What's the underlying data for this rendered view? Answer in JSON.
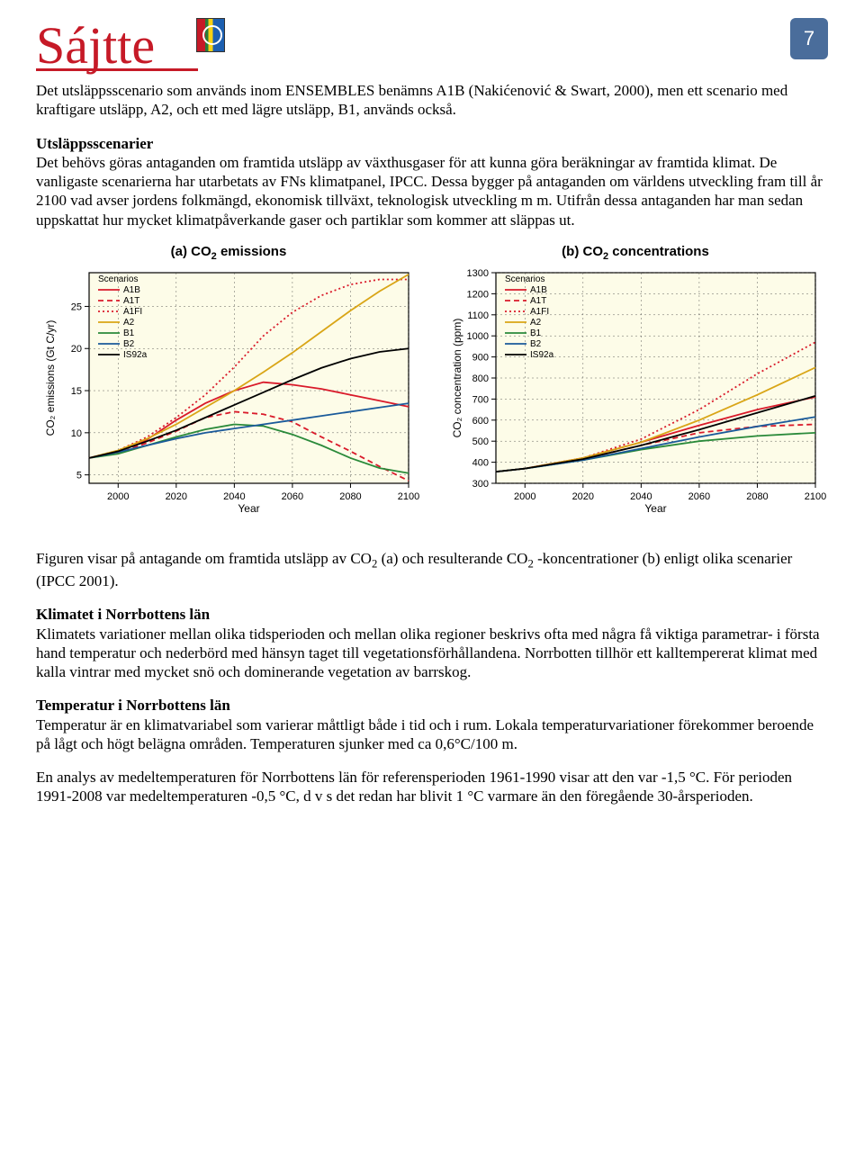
{
  "page_number": "7",
  "logo_text": "Sájtte",
  "para1": "Det utsläppsscenario som används inom ENSEMBLES benämns A1B (Nakićenović & Swart, 2000), men ett scenario med kraftigare utsläpp, A2, och ett med lägre utsläpp, B1, används också.",
  "sec1_title": "Utsläppsscenarier",
  "para2": "Det behövs göras antaganden om framtida utsläpp av växthusgaser för att kunna göra beräkningar av framtida klimat. De vanligaste scenarierna har utarbetats av FNs klimatpanel, IPCC. Dessa bygger på antaganden om världens utveckling fram till år 2100 vad avser jordens folkmängd, ekonomisk tillväxt, teknologisk utveckling m m. Utifrån dessa antaganden har man sedan uppskattat hur mycket klimatpåverkande gaser och partiklar som kommer att släppas ut.",
  "caption_a": "(a) CO",
  "caption_a2": " emissions",
  "caption_b": "(b) CO",
  "caption_b2": " concentrations",
  "chart_a": {
    "type": "line",
    "ylabel": "CO₂ emissions (Gt C/yr)",
    "xlabel": "Year",
    "xlim": [
      1990,
      2100
    ],
    "ylim": [
      4,
      29
    ],
    "yticks": [
      5,
      10,
      15,
      20,
      25
    ],
    "xticks": [
      2000,
      2020,
      2040,
      2060,
      2080,
      2100
    ],
    "legend_title": "Scenarios",
    "background": "#fdfce8",
    "grid_color": "#3a3a3a",
    "series": [
      {
        "name": "A1B",
        "color": "#d91a2a",
        "dash": "",
        "pts": [
          [
            1990,
            7.0
          ],
          [
            2000,
            7.8
          ],
          [
            2010,
            9.2
          ],
          [
            2020,
            11.5
          ],
          [
            2030,
            13.5
          ],
          [
            2040,
            15.0
          ],
          [
            2050,
            16.0
          ],
          [
            2060,
            15.7
          ],
          [
            2070,
            15.2
          ],
          [
            2080,
            14.5
          ],
          [
            2090,
            13.8
          ],
          [
            2100,
            13.1
          ]
        ]
      },
      {
        "name": "A1T",
        "color": "#d91a2a",
        "dash": "6,4",
        "pts": [
          [
            1990,
            7.0
          ],
          [
            2000,
            7.6
          ],
          [
            2010,
            8.8
          ],
          [
            2020,
            10.2
          ],
          [
            2030,
            11.8
          ],
          [
            2040,
            12.5
          ],
          [
            2050,
            12.2
          ],
          [
            2060,
            11.3
          ],
          [
            2070,
            9.5
          ],
          [
            2080,
            7.8
          ],
          [
            2090,
            6.0
          ],
          [
            2100,
            4.3
          ]
        ]
      },
      {
        "name": "A1FI",
        "color": "#d91a2a",
        "dash": "2,3",
        "pts": [
          [
            1990,
            7.0
          ],
          [
            2000,
            7.9
          ],
          [
            2010,
            9.5
          ],
          [
            2020,
            11.8
          ],
          [
            2030,
            14.5
          ],
          [
            2040,
            17.8
          ],
          [
            2050,
            21.5
          ],
          [
            2060,
            24.3
          ],
          [
            2070,
            26.3
          ],
          [
            2080,
            27.6
          ],
          [
            2090,
            28.2
          ],
          [
            2100,
            28.2
          ]
        ]
      },
      {
        "name": "A2",
        "color": "#d9a516",
        "dash": "",
        "pts": [
          [
            1990,
            7.0
          ],
          [
            2000,
            7.9
          ],
          [
            2010,
            9.3
          ],
          [
            2020,
            11.0
          ],
          [
            2030,
            13.0
          ],
          [
            2040,
            15.0
          ],
          [
            2050,
            17.2
          ],
          [
            2060,
            19.5
          ],
          [
            2070,
            22.0
          ],
          [
            2080,
            24.5
          ],
          [
            2090,
            26.8
          ],
          [
            2100,
            28.8
          ]
        ]
      },
      {
        "name": "B1",
        "color": "#2a8a3a",
        "dash": "",
        "pts": [
          [
            1990,
            7.0
          ],
          [
            2000,
            7.5
          ],
          [
            2010,
            8.5
          ],
          [
            2020,
            9.5
          ],
          [
            2030,
            10.4
          ],
          [
            2040,
            11.0
          ],
          [
            2050,
            10.8
          ],
          [
            2060,
            9.8
          ],
          [
            2070,
            8.5
          ],
          [
            2080,
            7.0
          ],
          [
            2090,
            5.8
          ],
          [
            2100,
            5.2
          ]
        ]
      },
      {
        "name": "B2",
        "color": "#1a5a9a",
        "dash": "",
        "pts": [
          [
            1990,
            7.0
          ],
          [
            2000,
            7.7
          ],
          [
            2010,
            8.5
          ],
          [
            2020,
            9.3
          ],
          [
            2030,
            10.0
          ],
          [
            2040,
            10.5
          ],
          [
            2050,
            11.0
          ],
          [
            2060,
            11.5
          ],
          [
            2070,
            12.0
          ],
          [
            2080,
            12.5
          ],
          [
            2090,
            13.0
          ],
          [
            2100,
            13.5
          ]
        ]
      },
      {
        "name": "IS92a",
        "color": "#000000",
        "dash": "",
        "pts": [
          [
            1990,
            7.0
          ],
          [
            2000,
            7.8
          ],
          [
            2010,
            9.0
          ],
          [
            2020,
            10.3
          ],
          [
            2030,
            11.8
          ],
          [
            2040,
            13.3
          ],
          [
            2050,
            14.8
          ],
          [
            2060,
            16.3
          ],
          [
            2070,
            17.7
          ],
          [
            2080,
            18.8
          ],
          [
            2090,
            19.6
          ],
          [
            2100,
            20.0
          ]
        ]
      }
    ]
  },
  "chart_b": {
    "type": "line",
    "ylabel": "CO₂ concentration (ppm)",
    "xlabel": "Year",
    "xlim": [
      1990,
      2100
    ],
    "ylim": [
      300,
      1300
    ],
    "yticks": [
      300,
      400,
      500,
      600,
      700,
      800,
      900,
      1000,
      1100,
      1200,
      1300
    ],
    "xticks": [
      2000,
      2020,
      2040,
      2060,
      2080,
      2100
    ],
    "legend_title": "Scenarios",
    "background": "#fdfce8",
    "grid_color": "#3a3a3a",
    "series": [
      {
        "name": "A1B",
        "color": "#d91a2a",
        "dash": "",
        "pts": [
          [
            1990,
            355
          ],
          [
            2000,
            370
          ],
          [
            2020,
            420
          ],
          [
            2040,
            495
          ],
          [
            2060,
            575
          ],
          [
            2080,
            650
          ],
          [
            2100,
            710
          ]
        ]
      },
      {
        "name": "A1T",
        "color": "#d91a2a",
        "dash": "6,4",
        "pts": [
          [
            1990,
            355
          ],
          [
            2000,
            370
          ],
          [
            2020,
            415
          ],
          [
            2040,
            480
          ],
          [
            2060,
            540
          ],
          [
            2080,
            570
          ],
          [
            2100,
            580
          ]
        ]
      },
      {
        "name": "A1FI",
        "color": "#d91a2a",
        "dash": "2,3",
        "pts": [
          [
            1990,
            355
          ],
          [
            2000,
            370
          ],
          [
            2020,
            420
          ],
          [
            2040,
            510
          ],
          [
            2060,
            650
          ],
          [
            2080,
            820
          ],
          [
            2100,
            970
          ]
        ]
      },
      {
        "name": "A2",
        "color": "#d9a516",
        "dash": "",
        "pts": [
          [
            1990,
            355
          ],
          [
            2000,
            370
          ],
          [
            2020,
            420
          ],
          [
            2040,
            495
          ],
          [
            2060,
            600
          ],
          [
            2080,
            720
          ],
          [
            2100,
            850
          ]
        ]
      },
      {
        "name": "B1",
        "color": "#2a8a3a",
        "dash": "",
        "pts": [
          [
            1990,
            355
          ],
          [
            2000,
            370
          ],
          [
            2020,
            410
          ],
          [
            2040,
            460
          ],
          [
            2060,
            500
          ],
          [
            2080,
            525
          ],
          [
            2100,
            540
          ]
        ]
      },
      {
        "name": "B2",
        "color": "#1a5a9a",
        "dash": "",
        "pts": [
          [
            1990,
            355
          ],
          [
            2000,
            370
          ],
          [
            2020,
            410
          ],
          [
            2040,
            465
          ],
          [
            2060,
            520
          ],
          [
            2080,
            570
          ],
          [
            2100,
            615
          ]
        ]
      },
      {
        "name": "IS92a",
        "color": "#000000",
        "dash": "",
        "pts": [
          [
            1990,
            355
          ],
          [
            2000,
            370
          ],
          [
            2020,
            415
          ],
          [
            2040,
            480
          ],
          [
            2060,
            555
          ],
          [
            2080,
            635
          ],
          [
            2100,
            715
          ]
        ]
      }
    ]
  },
  "fig_caption_1": "Figuren visar på antagande om framtida utsläpp av CO",
  "fig_caption_2": " (a) och resulterande CO",
  "fig_caption_3": " -koncentrationer (b) enligt olika scenarier (IPCC 2001).",
  "sec2_title": "Klimatet i Norrbottens län",
  "para3": "Klimatets variationer mellan olika tidsperioden och mellan olika regioner beskrivs ofta med några få viktiga parametrar- i första hand temperatur och nederbörd med hänsyn taget till vegetationsförhållandena. Norrbotten tillhör ett kalltempererat klimat med kalla vintrar med mycket snö och dominerande vegetation av barrskog.",
  "sec3_title": "Temperatur i Norrbottens län",
  "para4": "Temperatur är en klimatvariabel som varierar måttligt både i tid och i rum. Lokala temperaturvariationer förekommer beroende på lågt och högt belägna områden. Temperaturen sjunker med ca 0,6°C/100 m.",
  "para5": "En analys av medeltemperaturen för Norrbottens län för referensperioden 1961-1990 visar att den var -1,5 °C. För perioden 1991-2008 var medeltemperaturen -0,5 °C, d v s det redan har blivit 1 °C varmare än den föregående 30-årsperioden."
}
